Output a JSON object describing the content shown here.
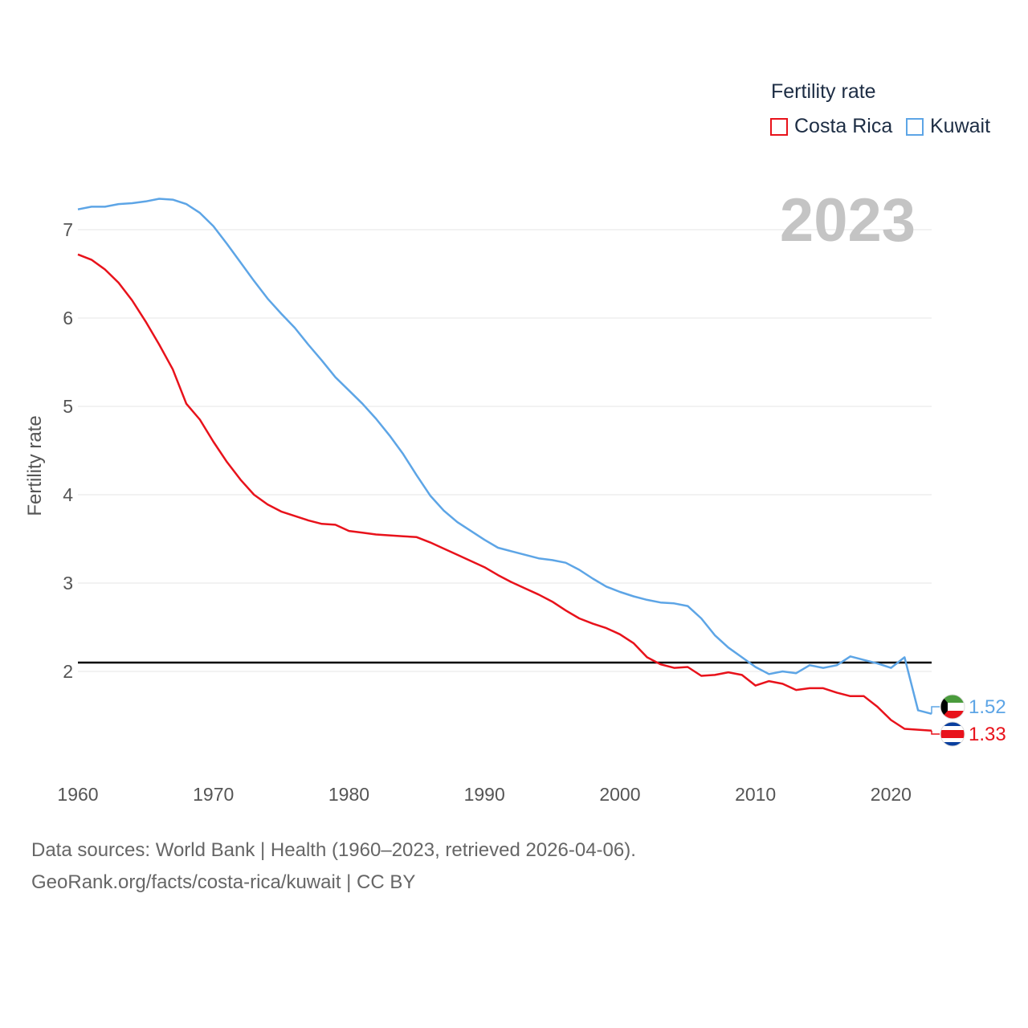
{
  "legend": {
    "title": "Fertility rate",
    "items": [
      {
        "name": "Costa Rica",
        "color": "#e8121b"
      },
      {
        "name": "Kuwait",
        "color": "#5da5e6"
      }
    ]
  },
  "source_line1": "Data sources: World Bank | Health (1960–2023, retrieved 2026-04-06).",
  "source_line2": "GeoRank.org/facts/costa-rica/kuwait | CC BY",
  "chart_data": {
    "type": "line",
    "title": "Fertility rate",
    "year_label": "2023",
    "xlabel": "",
    "ylabel": "Fertility rate",
    "xlim": [
      1960,
      2023
    ],
    "ylim": [
      1,
      7.5
    ],
    "x_ticks": [
      1960,
      1970,
      1980,
      1990,
      2000,
      2010,
      2020
    ],
    "y_ticks": [
      2,
      3,
      4,
      5,
      6,
      7
    ],
    "reference_line": 2.1,
    "x": [
      1960,
      1961,
      1962,
      1963,
      1964,
      1965,
      1966,
      1967,
      1968,
      1969,
      1970,
      1971,
      1972,
      1973,
      1974,
      1975,
      1976,
      1977,
      1978,
      1979,
      1980,
      1981,
      1982,
      1983,
      1984,
      1985,
      1986,
      1987,
      1988,
      1989,
      1990,
      1991,
      1992,
      1993,
      1994,
      1995,
      1996,
      1997,
      1998,
      1999,
      2000,
      2001,
      2002,
      2003,
      2004,
      2005,
      2006,
      2007,
      2008,
      2009,
      2010,
      2011,
      2012,
      2013,
      2014,
      2015,
      2016,
      2017,
      2018,
      2019,
      2020,
      2021,
      2022,
      2023
    ],
    "series": [
      {
        "name": "Costa Rica",
        "color": "#e8121b",
        "end_label": "1.33",
        "values": [
          6.72,
          6.66,
          6.55,
          6.4,
          6.2,
          5.96,
          5.7,
          5.42,
          5.03,
          4.85,
          4.6,
          4.37,
          4.17,
          4.0,
          3.89,
          3.81,
          3.76,
          3.71,
          3.67,
          3.66,
          3.59,
          3.57,
          3.55,
          3.54,
          3.53,
          3.52,
          3.46,
          3.39,
          3.32,
          3.25,
          3.18,
          3.09,
          3.01,
          2.94,
          2.87,
          2.79,
          2.69,
          2.6,
          2.54,
          2.49,
          2.42,
          2.32,
          2.16,
          2.08,
          2.04,
          2.05,
          1.95,
          1.96,
          1.99,
          1.96,
          1.84,
          1.89,
          1.86,
          1.79,
          1.81,
          1.81,
          1.76,
          1.72,
          1.72,
          1.6,
          1.45,
          1.35,
          1.34,
          1.33
        ]
      },
      {
        "name": "Kuwait",
        "color": "#5da5e6",
        "end_label": "1.52",
        "values": [
          7.23,
          7.26,
          7.26,
          7.29,
          7.3,
          7.32,
          7.35,
          7.34,
          7.29,
          7.19,
          7.04,
          6.84,
          6.63,
          6.42,
          6.22,
          6.05,
          5.89,
          5.7,
          5.52,
          5.33,
          5.18,
          5.03,
          4.86,
          4.67,
          4.46,
          4.22,
          3.99,
          3.82,
          3.69,
          3.59,
          3.49,
          3.4,
          3.36,
          3.32,
          3.28,
          3.26,
          3.23,
          3.15,
          3.05,
          2.96,
          2.9,
          2.85,
          2.81,
          2.78,
          2.77,
          2.74,
          2.6,
          2.41,
          2.27,
          2.16,
          2.05,
          1.97,
          2.0,
          1.98,
          2.07,
          2.04,
          2.07,
          2.17,
          2.13,
          2.09,
          2.04,
          2.16,
          1.56,
          1.52
        ]
      }
    ]
  }
}
